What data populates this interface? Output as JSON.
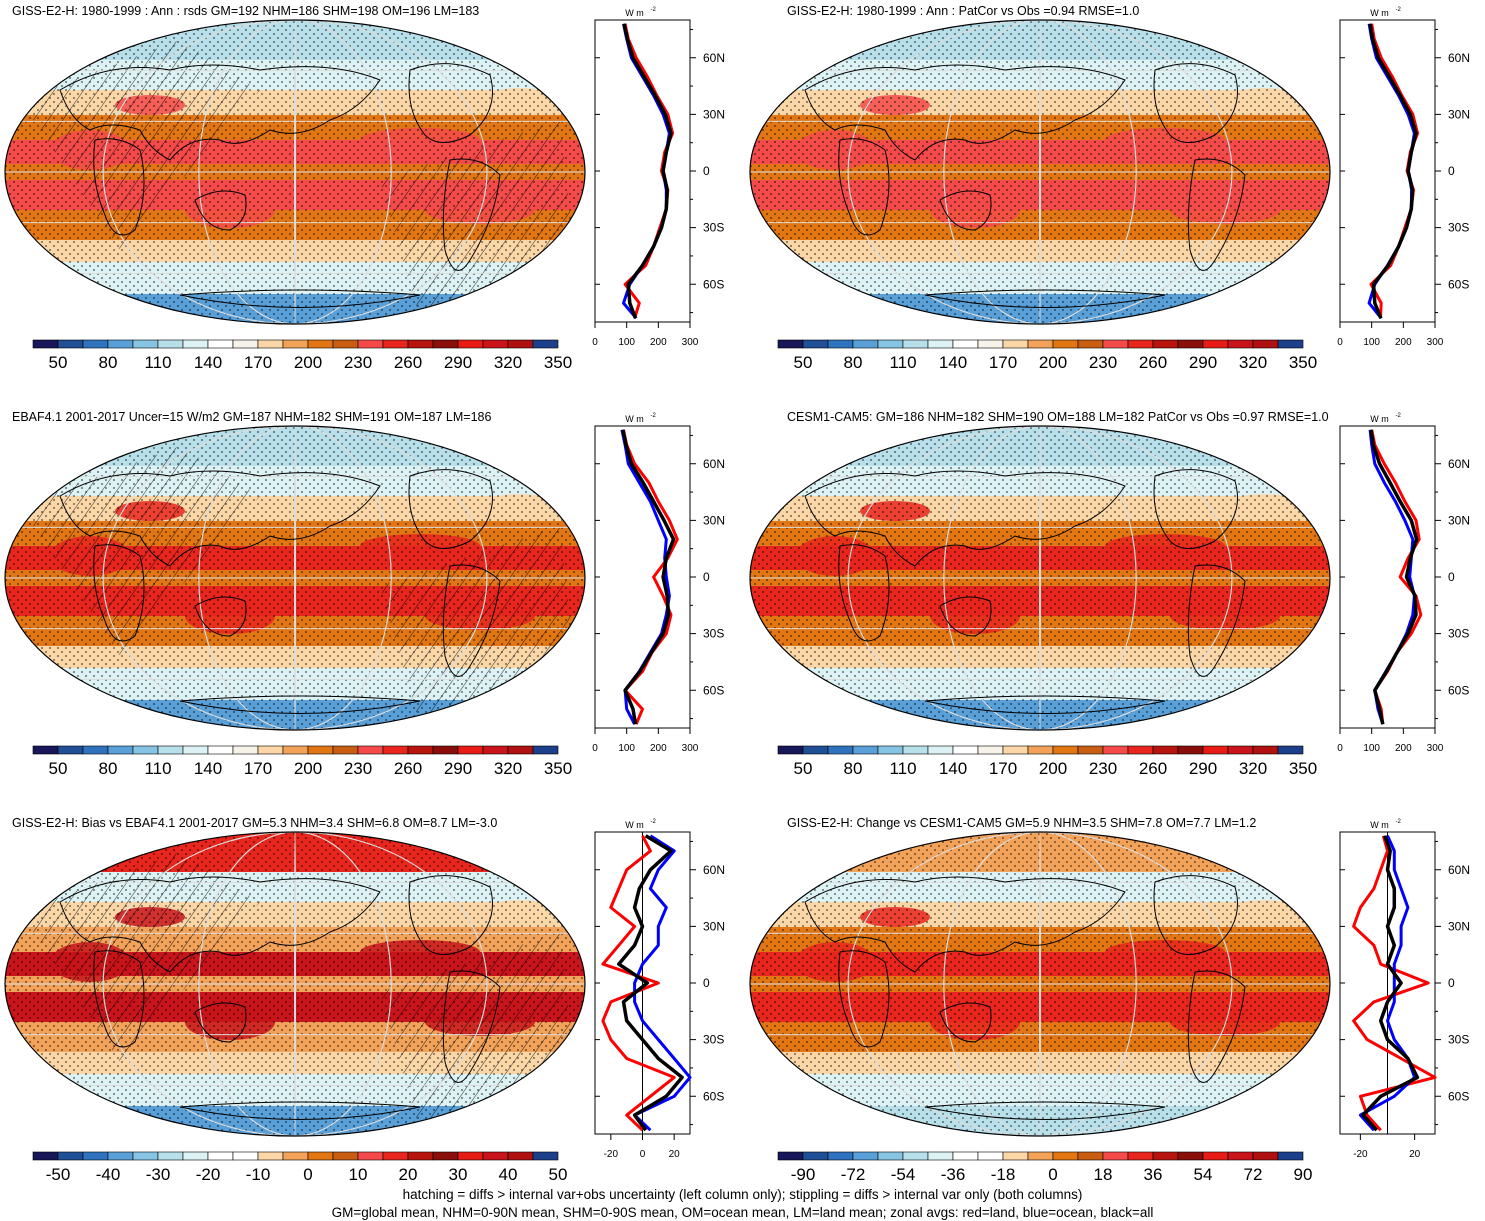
{
  "figure": {
    "footnote_1": "hatching = diffs > internal var+obs uncertainty (left column only); stippling = diffs > internal var only (both columns)",
    "footnote_2": "GM=global mean, NHM=0-90N mean, SHM=0-90S mean, OM=ocean mean, LM=land mean; zonal avgs: red=land, blue=ocean, black=all"
  },
  "colors": {
    "land": "#ff0000",
    "ocean": "#0000ff",
    "all": "#000000",
    "ocean_fill": "#e08010",
    "continent_outline": "#000000",
    "abs_scale": [
      "#18175a",
      "#1f4f94",
      "#2f72be",
      "#5aa0d8",
      "#86c4e4",
      "#b8e0ea",
      "#ddf2f4",
      "#ffffff",
      "#f7f2ea",
      "#fbd7a8",
      "#f3a25a",
      "#e17612",
      "#c95e13",
      "#f54a4a",
      "#e8261d",
      "#b8140e",
      "#8a0e0a",
      "#e81c14",
      "#c8141a",
      "#b01010",
      "#1c3f8c"
    ],
    "diff_scale": [
      "#18175a",
      "#1f4f94",
      "#2f72be",
      "#5aa0d8",
      "#86c4e4",
      "#b8e0ea",
      "#ddf2f4",
      "#ffffff",
      "#ffffff",
      "#fbd7a8",
      "#f3a25a",
      "#e17612",
      "#c95e13",
      "#f54a4a",
      "#e8261d",
      "#b8140e",
      "#8a0e0a",
      "#e81c14",
      "#c8141a",
      "#b01010",
      "#1c3f8c"
    ]
  },
  "chart_data": [
    {
      "type": "heatmap",
      "title": "GISS-E2-H: 1980-1999 : Ann : rsds GM=192 NHM=186 SHM=198 OM=196 LM=183",
      "colorbar_labels": [
        "50",
        "80",
        "110",
        "140",
        "170",
        "200",
        "230",
        "260",
        "290",
        "320",
        "350"
      ],
      "profile": {
        "type": "line",
        "unit_label": "W m",
        "unit_exp": "-2",
        "ylabel_ticks": [
          "60N",
          "30N",
          "0",
          "30S",
          "60S"
        ],
        "xticks": [
          "0",
          "100",
          "200",
          "300"
        ],
        "xlim": [
          0,
          300
        ],
        "ylim": [
          -80,
          80
        ],
        "lat": [
          -78,
          -70,
          -60,
          -50,
          -40,
          -30,
          -20,
          -10,
          0,
          10,
          20,
          30,
          40,
          50,
          60,
          70,
          78
        ],
        "series": [
          {
            "name": "land",
            "values": [
              125,
              140,
              95,
              160,
              185,
              205,
              225,
              230,
              210,
              220,
              245,
              230,
              195,
              165,
              130,
              105,
              95
            ]
          },
          {
            "name": "ocean",
            "values": [
              130,
              90,
              110,
              150,
              185,
              210,
              225,
              225,
              215,
              225,
              235,
              215,
              185,
              150,
              115,
              100,
              90
            ]
          },
          {
            "name": "all",
            "values": [
              128,
              110,
              105,
              150,
              185,
              210,
              225,
              228,
              215,
              225,
              240,
              222,
              190,
              155,
              120,
              102,
              92
            ]
          }
        ]
      }
    },
    {
      "type": "heatmap",
      "title": "GISS-E2-H: 1980-1999 : Ann : PatCor vs Obs =0.94 RMSE=1.0",
      "colorbar_labels": [
        "50",
        "80",
        "110",
        "140",
        "170",
        "200",
        "230",
        "260",
        "290",
        "320",
        "350"
      ],
      "profile": {
        "type": "line",
        "unit_label": "W m",
        "unit_exp": "-2",
        "ylabel_ticks": [
          "60N",
          "30N",
          "0",
          "30S",
          "60S"
        ],
        "xticks": [
          "0",
          "100",
          "200",
          "300"
        ],
        "xlim": [
          0,
          300
        ],
        "ylim": [
          -80,
          80
        ],
        "lat": [
          -78,
          -70,
          -60,
          -50,
          -40,
          -30,
          -20,
          -10,
          0,
          10,
          20,
          30,
          40,
          50,
          60,
          70,
          78
        ],
        "series": [
          {
            "name": "land",
            "values": [
              128,
              130,
              98,
              160,
              185,
              205,
              225,
              232,
              212,
              222,
              245,
              230,
              195,
              165,
              130,
              108,
              100
            ]
          },
          {
            "name": "ocean",
            "values": [
              130,
              92,
              110,
              150,
              185,
              210,
              225,
              226,
              216,
              225,
              235,
              215,
              185,
              150,
              115,
              100,
              92
            ]
          },
          {
            "name": "all",
            "values": [
              129,
              110,
              106,
              152,
              185,
              210,
              225,
              229,
              215,
              225,
              240,
              222,
              190,
              156,
              121,
              103,
              95
            ]
          }
        ]
      }
    },
    {
      "type": "heatmap",
      "title": "EBAF4.1 2001-2017 Uncer=15 W/m2 GM=187 NHM=182 SHM=191 OM=187 LM=186",
      "colorbar_labels": [
        "50",
        "80",
        "110",
        "140",
        "170",
        "200",
        "230",
        "260",
        "290",
        "320",
        "350"
      ],
      "profile": {
        "type": "line",
        "unit_label": "W m",
        "unit_exp": "-2",
        "ylabel_ticks": [
          "60N",
          "30N",
          "0",
          "30S",
          "60S"
        ],
        "xticks": [
          "0",
          "100",
          "200",
          "300"
        ],
        "xlim": [
          0,
          300
        ],
        "ylim": [
          -80,
          80
        ],
        "lat": [
          -78,
          -70,
          -60,
          -50,
          -40,
          -30,
          -20,
          -10,
          0,
          10,
          20,
          30,
          40,
          50,
          60,
          70,
          78
        ],
        "series": [
          {
            "name": "land",
            "values": [
              130,
              150,
              95,
              150,
              180,
              225,
              240,
              215,
              185,
              230,
              260,
              235,
              200,
              170,
              125,
              100,
              90
            ]
          },
          {
            "name": "ocean",
            "values": [
              125,
              100,
              95,
              140,
              175,
              210,
              225,
              235,
              225,
              220,
              225,
              200,
              175,
              140,
              105,
              95,
              85
            ]
          },
          {
            "name": "all",
            "values": [
              128,
              120,
              95,
              142,
              178,
              215,
              232,
              228,
              215,
              225,
              248,
              218,
              185,
              152,
              115,
              98,
              88
            ]
          }
        ]
      }
    },
    {
      "type": "heatmap",
      "title": "CESM1-CAM5: GM=186 NHM=182 SHM=190 OM=188 LM=182 PatCor vs Obs =0.97 RMSE=1.0",
      "colorbar_labels": [
        "50",
        "80",
        "110",
        "140",
        "170",
        "200",
        "230",
        "260",
        "290",
        "320",
        "350"
      ],
      "profile": {
        "type": "line",
        "unit_label": "W m",
        "unit_exp": "-2",
        "ylabel_ticks": [
          "60N",
          "30N",
          "0",
          "30S",
          "60S"
        ],
        "xticks": [
          "0",
          "100",
          "200",
          "300"
        ],
        "xlim": [
          0,
          300
        ],
        "ylim": [
          -80,
          80
        ],
        "lat": [
          -78,
          -70,
          -60,
          -50,
          -40,
          -30,
          -20,
          -10,
          0,
          10,
          20,
          30,
          40,
          50,
          60,
          70,
          78
        ],
        "series": [
          {
            "name": "land",
            "values": [
              135,
              130,
              110,
              150,
              180,
              225,
              255,
              240,
              190,
              215,
              250,
              240,
              205,
              175,
              140,
              110,
              100
            ]
          },
          {
            "name": "ocean",
            "values": [
              135,
              120,
              110,
              145,
              180,
              210,
              230,
              235,
              220,
              225,
              230,
              205,
              175,
              140,
              110,
              100,
              95
            ]
          },
          {
            "name": "all",
            "values": [
              135,
              125,
              110,
              147,
              180,
              215,
              240,
              237,
              210,
              222,
              242,
              225,
              190,
              158,
              125,
              105,
              98
            ]
          }
        ]
      }
    },
    {
      "type": "heatmap",
      "title": "GISS-E2-H: Bias vs EBAF4.1 2001-2017 GM=5.3 NHM=3.4 SHM=6.8 OM=8.7 LM=-3.0",
      "colorbar_labels": [
        "-50",
        "-40",
        "-30",
        "-20",
        "-10",
        "0",
        "10",
        "20",
        "30",
        "40",
        "50"
      ],
      "profile": {
        "type": "line",
        "unit_label": "W m",
        "unit_exp": "-2",
        "ylabel_ticks": [
          "60N",
          "30N",
          "0",
          "30S",
          "60S"
        ],
        "xticks": [
          "-20",
          "0",
          "20"
        ],
        "xlim": [
          -30,
          30
        ],
        "ylim": [
          -80,
          80
        ],
        "lat": [
          -78,
          -70,
          -60,
          -50,
          -40,
          -30,
          -20,
          -10,
          0,
          10,
          20,
          30,
          40,
          50,
          60,
          70,
          78
        ],
        "series": [
          {
            "name": "land",
            "values": [
              0,
              -10,
              5,
              20,
              -10,
              -20,
              -25,
              -20,
              10,
              -25,
              -15,
              -5,
              -20,
              -15,
              -10,
              5,
              0
            ]
          },
          {
            "name": "ocean",
            "values": [
              5,
              -5,
              20,
              30,
              20,
              10,
              0,
              -5,
              -5,
              0,
              10,
              10,
              15,
              5,
              10,
              20,
              5
            ]
          },
          {
            "name": "all",
            "values": [
              2,
              -5,
              15,
              25,
              10,
              0,
              -10,
              -12,
              3,
              -15,
              -5,
              0,
              -5,
              -2,
              5,
              18,
              2
            ]
          }
        ]
      }
    },
    {
      "type": "heatmap",
      "title": "GISS-E2-H: Change vs CESM1-CAM5 GM=5.9 NHM=3.5 SHM=7.8 OM=7.7 LM=1.2",
      "colorbar_labels": [
        "-90",
        "-72",
        "-54",
        "-36",
        "-18",
        "0",
        "18",
        "36",
        "54",
        "72",
        "90"
      ],
      "profile": {
        "type": "line",
        "unit_label": "W m",
        "unit_exp": "-2",
        "ylabel_ticks": [
          "60N",
          "30N",
          "0",
          "30S",
          "60S"
        ],
        "xticks": [
          "-20",
          "20"
        ],
        "xlim": [
          -35,
          35
        ],
        "ylim": [
          -80,
          80
        ],
        "lat": [
          -78,
          -70,
          -60,
          -50,
          -40,
          -30,
          -20,
          -10,
          0,
          10,
          20,
          30,
          40,
          50,
          60,
          70,
          78
        ],
        "series": [
          {
            "name": "land",
            "values": [
              -5,
              -15,
              -20,
              35,
              10,
              -15,
              -25,
              -10,
              30,
              -5,
              -10,
              -25,
              -20,
              -10,
              -5,
              0,
              -3
            ]
          },
          {
            "name": "ocean",
            "values": [
              -10,
              -20,
              5,
              20,
              15,
              5,
              0,
              5,
              5,
              5,
              10,
              10,
              15,
              10,
              5,
              5,
              0
            ]
          },
          {
            "name": "all",
            "values": [
              -8,
              -18,
              -5,
              22,
              15,
              0,
              -5,
              0,
              10,
              0,
              5,
              0,
              5,
              5,
              0,
              2,
              -2
            ]
          }
        ]
      }
    }
  ]
}
